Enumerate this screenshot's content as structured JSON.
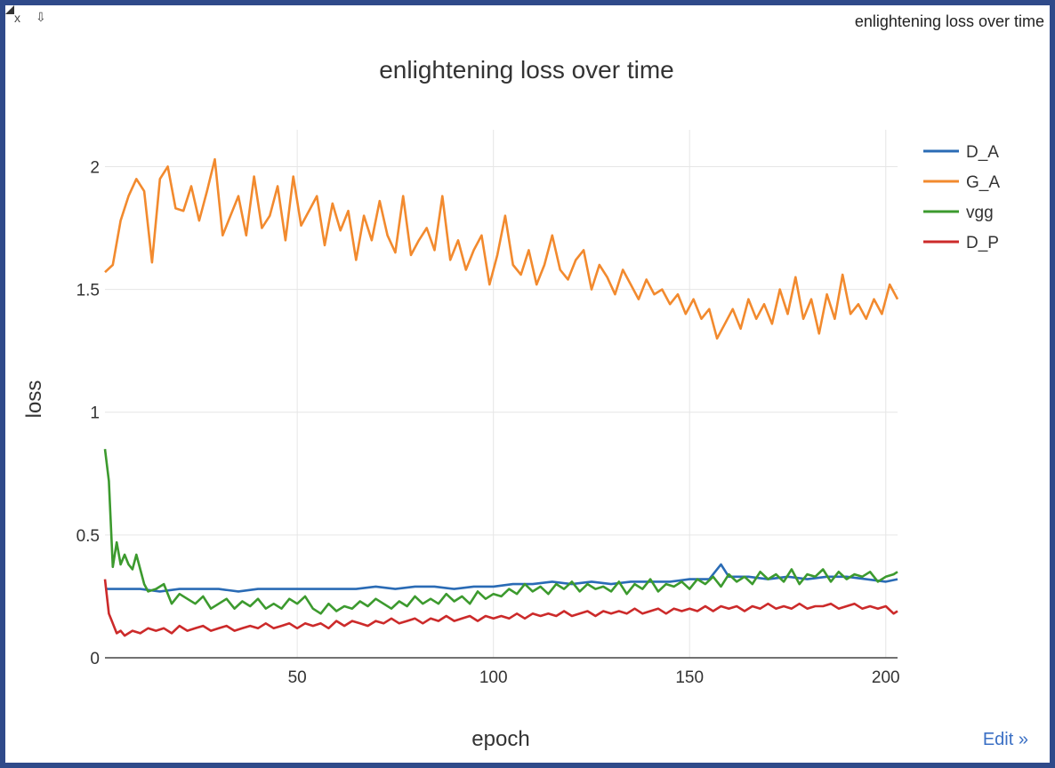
{
  "window": {
    "close_label": "x",
    "popout_label": "⇩",
    "title": "enlightening loss over time",
    "edit_label": "Edit »"
  },
  "chart_data": {
    "type": "line",
    "title": "enlightening loss over time",
    "xlabel": "epoch",
    "ylabel": "loss",
    "xlim": [
      1,
      203
    ],
    "ylim": [
      0,
      2.15
    ],
    "xticks": [
      50,
      100,
      150,
      200
    ],
    "yticks": [
      0,
      0.5,
      1,
      1.5,
      2
    ],
    "ytick_labels": [
      "0",
      "0.5",
      "1",
      "1.5",
      "2"
    ],
    "grid": true,
    "legend_position": "top-right",
    "series": [
      {
        "name": "D_A",
        "color": "#2a6bb5",
        "x": [
          1,
          5,
          10,
          15,
          20,
          25,
          30,
          35,
          40,
          45,
          50,
          55,
          60,
          65,
          70,
          75,
          80,
          85,
          90,
          95,
          100,
          105,
          110,
          115,
          120,
          125,
          130,
          135,
          140,
          145,
          150,
          155,
          158,
          160,
          165,
          170,
          175,
          180,
          185,
          190,
          195,
          200,
          203
        ],
        "y": [
          0.28,
          0.28,
          0.28,
          0.27,
          0.28,
          0.28,
          0.28,
          0.27,
          0.28,
          0.28,
          0.28,
          0.28,
          0.28,
          0.28,
          0.29,
          0.28,
          0.29,
          0.29,
          0.28,
          0.29,
          0.29,
          0.3,
          0.3,
          0.31,
          0.3,
          0.31,
          0.3,
          0.31,
          0.31,
          0.31,
          0.32,
          0.32,
          0.38,
          0.33,
          0.33,
          0.32,
          0.33,
          0.32,
          0.33,
          0.33,
          0.32,
          0.31,
          0.32
        ]
      },
      {
        "name": "G_A",
        "color": "#f28a2e",
        "x": [
          1,
          3,
          5,
          7,
          9,
          11,
          13,
          15,
          17,
          19,
          21,
          23,
          25,
          27,
          29,
          31,
          33,
          35,
          37,
          39,
          41,
          43,
          45,
          47,
          49,
          51,
          53,
          55,
          57,
          59,
          61,
          63,
          65,
          67,
          69,
          71,
          73,
          75,
          77,
          79,
          81,
          83,
          85,
          87,
          89,
          91,
          93,
          95,
          97,
          99,
          101,
          103,
          105,
          107,
          109,
          111,
          113,
          115,
          117,
          119,
          121,
          123,
          125,
          127,
          129,
          131,
          133,
          135,
          137,
          139,
          141,
          143,
          145,
          147,
          149,
          151,
          153,
          155,
          157,
          159,
          161,
          163,
          165,
          167,
          169,
          171,
          173,
          175,
          177,
          179,
          181,
          183,
          185,
          187,
          189,
          191,
          193,
          195,
          197,
          199,
          201,
          203
        ],
        "y": [
          1.57,
          1.6,
          1.78,
          1.88,
          1.95,
          1.9,
          1.61,
          1.95,
          2.0,
          1.83,
          1.82,
          1.92,
          1.78,
          1.9,
          2.03,
          1.72,
          1.8,
          1.88,
          1.72,
          1.96,
          1.75,
          1.8,
          1.92,
          1.7,
          1.96,
          1.76,
          1.82,
          1.88,
          1.68,
          1.85,
          1.74,
          1.82,
          1.62,
          1.8,
          1.7,
          1.86,
          1.72,
          1.65,
          1.88,
          1.64,
          1.7,
          1.75,
          1.66,
          1.88,
          1.62,
          1.7,
          1.58,
          1.66,
          1.72,
          1.52,
          1.64,
          1.8,
          1.6,
          1.56,
          1.66,
          1.52,
          1.6,
          1.72,
          1.58,
          1.54,
          1.62,
          1.66,
          1.5,
          1.6,
          1.55,
          1.48,
          1.58,
          1.52,
          1.46,
          1.54,
          1.48,
          1.5,
          1.44,
          1.48,
          1.4,
          1.46,
          1.38,
          1.42,
          1.3,
          1.36,
          1.42,
          1.34,
          1.46,
          1.38,
          1.44,
          1.36,
          1.5,
          1.4,
          1.55,
          1.38,
          1.46,
          1.32,
          1.48,
          1.38,
          1.56,
          1.4,
          1.44,
          1.38,
          1.46,
          1.4,
          1.52,
          1.46
        ]
      },
      {
        "name": "vgg",
        "color": "#3c9a2e",
        "x": [
          1,
          2,
          3,
          4,
          5,
          6,
          7,
          8,
          9,
          10,
          11,
          12,
          14,
          16,
          18,
          20,
          22,
          24,
          26,
          28,
          30,
          32,
          34,
          36,
          38,
          40,
          42,
          44,
          46,
          48,
          50,
          52,
          54,
          56,
          58,
          60,
          62,
          64,
          66,
          68,
          70,
          72,
          74,
          76,
          78,
          80,
          82,
          84,
          86,
          88,
          90,
          92,
          94,
          96,
          98,
          100,
          102,
          104,
          106,
          108,
          110,
          112,
          114,
          116,
          118,
          120,
          122,
          124,
          126,
          128,
          130,
          132,
          134,
          136,
          138,
          140,
          142,
          144,
          146,
          148,
          150,
          152,
          154,
          156,
          158,
          160,
          162,
          164,
          166,
          168,
          170,
          172,
          174,
          176,
          178,
          180,
          182,
          184,
          186,
          188,
          190,
          192,
          194,
          196,
          198,
          200,
          202,
          203
        ],
        "y": [
          0.85,
          0.72,
          0.37,
          0.47,
          0.38,
          0.42,
          0.38,
          0.36,
          0.42,
          0.36,
          0.3,
          0.27,
          0.28,
          0.3,
          0.22,
          0.26,
          0.24,
          0.22,
          0.25,
          0.2,
          0.22,
          0.24,
          0.2,
          0.23,
          0.21,
          0.24,
          0.2,
          0.22,
          0.2,
          0.24,
          0.22,
          0.25,
          0.2,
          0.18,
          0.22,
          0.19,
          0.21,
          0.2,
          0.23,
          0.21,
          0.24,
          0.22,
          0.2,
          0.23,
          0.21,
          0.25,
          0.22,
          0.24,
          0.22,
          0.26,
          0.23,
          0.25,
          0.22,
          0.27,
          0.24,
          0.26,
          0.25,
          0.28,
          0.26,
          0.3,
          0.27,
          0.29,
          0.26,
          0.3,
          0.28,
          0.31,
          0.27,
          0.3,
          0.28,
          0.29,
          0.27,
          0.31,
          0.26,
          0.3,
          0.28,
          0.32,
          0.27,
          0.3,
          0.29,
          0.31,
          0.28,
          0.32,
          0.3,
          0.33,
          0.29,
          0.34,
          0.31,
          0.33,
          0.3,
          0.35,
          0.32,
          0.34,
          0.31,
          0.36,
          0.3,
          0.34,
          0.33,
          0.36,
          0.31,
          0.35,
          0.32,
          0.34,
          0.33,
          0.35,
          0.31,
          0.33,
          0.34,
          0.35
        ]
      },
      {
        "name": "D_P",
        "color": "#cc2a2a",
        "x": [
          1,
          2,
          3,
          4,
          5,
          6,
          8,
          10,
          12,
          14,
          16,
          18,
          20,
          22,
          24,
          26,
          28,
          30,
          32,
          34,
          36,
          38,
          40,
          42,
          44,
          46,
          48,
          50,
          52,
          54,
          56,
          58,
          60,
          62,
          64,
          66,
          68,
          70,
          72,
          74,
          76,
          78,
          80,
          82,
          84,
          86,
          88,
          90,
          92,
          94,
          96,
          98,
          100,
          102,
          104,
          106,
          108,
          110,
          112,
          114,
          116,
          118,
          120,
          122,
          124,
          126,
          128,
          130,
          132,
          134,
          136,
          138,
          140,
          142,
          144,
          146,
          148,
          150,
          152,
          154,
          156,
          158,
          160,
          162,
          164,
          166,
          168,
          170,
          172,
          174,
          176,
          178,
          180,
          182,
          184,
          186,
          188,
          190,
          192,
          194,
          196,
          198,
          200,
          202,
          203
        ],
        "y": [
          0.32,
          0.18,
          0.14,
          0.1,
          0.11,
          0.09,
          0.11,
          0.1,
          0.12,
          0.11,
          0.12,
          0.1,
          0.13,
          0.11,
          0.12,
          0.13,
          0.11,
          0.12,
          0.13,
          0.11,
          0.12,
          0.13,
          0.12,
          0.14,
          0.12,
          0.13,
          0.14,
          0.12,
          0.14,
          0.13,
          0.14,
          0.12,
          0.15,
          0.13,
          0.15,
          0.14,
          0.13,
          0.15,
          0.14,
          0.16,
          0.14,
          0.15,
          0.16,
          0.14,
          0.16,
          0.15,
          0.17,
          0.15,
          0.16,
          0.17,
          0.15,
          0.17,
          0.16,
          0.17,
          0.16,
          0.18,
          0.16,
          0.18,
          0.17,
          0.18,
          0.17,
          0.19,
          0.17,
          0.18,
          0.19,
          0.17,
          0.19,
          0.18,
          0.19,
          0.18,
          0.2,
          0.18,
          0.19,
          0.2,
          0.18,
          0.2,
          0.19,
          0.2,
          0.19,
          0.21,
          0.19,
          0.21,
          0.2,
          0.21,
          0.19,
          0.21,
          0.2,
          0.22,
          0.2,
          0.21,
          0.2,
          0.22,
          0.2,
          0.21,
          0.21,
          0.22,
          0.2,
          0.21,
          0.22,
          0.2,
          0.21,
          0.2,
          0.21,
          0.18,
          0.19
        ]
      }
    ]
  }
}
